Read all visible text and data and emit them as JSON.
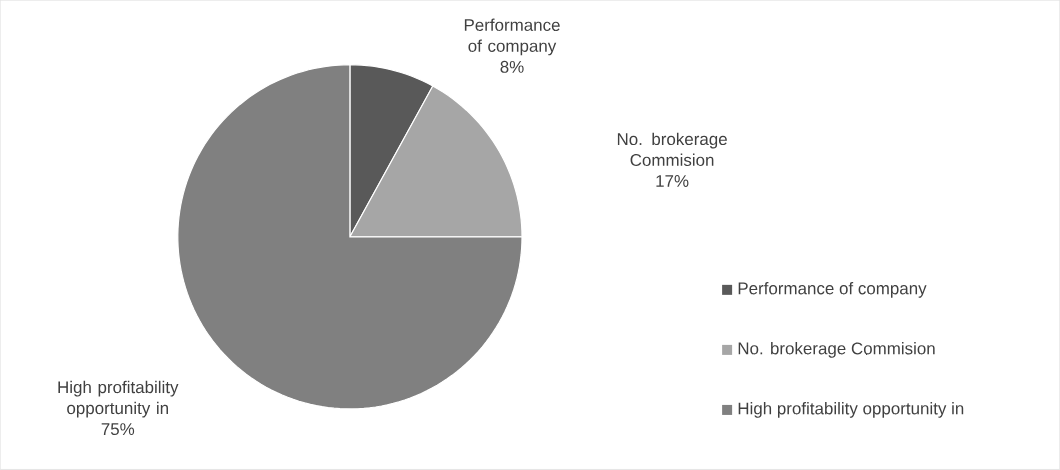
{
  "chart_data": {
    "type": "pie",
    "categories": [
      "Performance of company",
      "No. brokerage Commision",
      "High profitability opportunity in"
    ],
    "values": [
      8,
      17,
      75
    ],
    "value_labels": [
      "8%",
      "17%",
      "75%"
    ],
    "colors": [
      "#595959",
      "#a6a6a6",
      "#808080"
    ],
    "legend": "right"
  }
}
